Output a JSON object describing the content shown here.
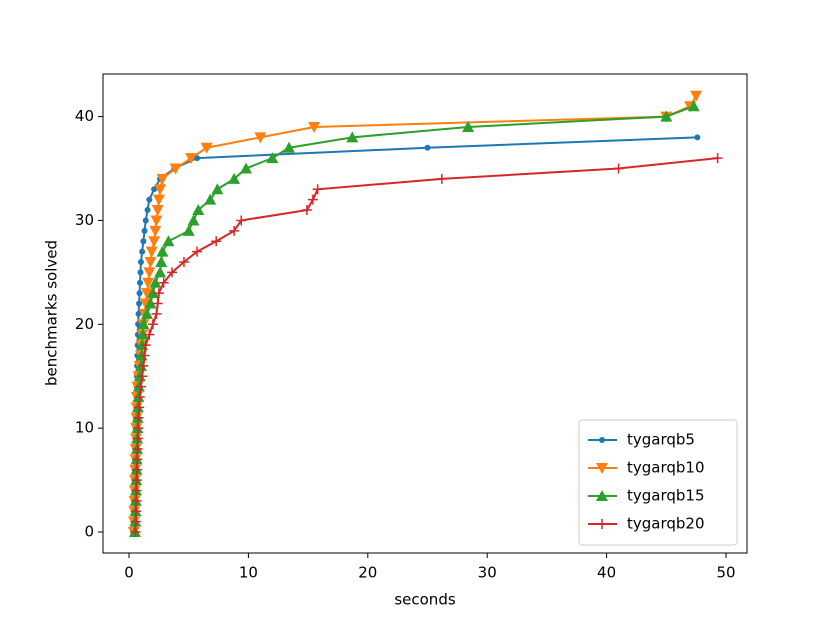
{
  "chart_data": {
    "type": "line",
    "xlabel": "seconds",
    "ylabel": "benchmarks solved",
    "xlim": [
      -2.18,
      51.76
    ],
    "ylim": [
      -2.02,
      44.1
    ],
    "xticks": [
      0,
      10,
      20,
      30,
      40,
      50
    ],
    "yticks": [
      0,
      10,
      20,
      30,
      40
    ],
    "legend": "lower right",
    "series": [
      {
        "name": "tygarqb5",
        "color": "#1f77b4",
        "marker": "circle",
        "x": [
          0.35,
          0.38,
          0.4,
          0.42,
          0.44,
          0.46,
          0.48,
          0.5,
          0.52,
          0.54,
          0.56,
          0.58,
          0.6,
          0.62,
          0.64,
          0.66,
          0.68,
          0.7,
          0.72,
          0.74,
          0.76,
          0.8,
          0.84,
          0.88,
          0.92,
          0.96,
          1.0,
          1.1,
          1.2,
          1.3,
          1.4,
          1.55,
          1.7,
          2.1,
          2.6,
          3.8,
          5.7,
          25,
          47.6
        ],
        "values": [
          0,
          1,
          2,
          3,
          4,
          5,
          6,
          7,
          8,
          9,
          10,
          11,
          12,
          13,
          14,
          15,
          16,
          17,
          18,
          19,
          20,
          21,
          22,
          23,
          24,
          25,
          26,
          27,
          28,
          29,
          30,
          31,
          32,
          33,
          34,
          35,
          36,
          37,
          38
        ]
      },
      {
        "name": "tygarqb10",
        "color": "#ff7f0e",
        "marker": "triangle-down",
        "x": [
          0.4,
          0.42,
          0.44,
          0.46,
          0.48,
          0.5,
          0.52,
          0.54,
          0.56,
          0.58,
          0.6,
          0.62,
          0.64,
          0.66,
          0.7,
          0.8,
          0.9,
          1.0,
          1.05,
          1.1,
          1.2,
          1.3,
          1.4,
          1.5,
          1.6,
          1.7,
          1.8,
          1.9,
          2.1,
          2.2,
          2.3,
          2.4,
          2.5,
          2.6,
          2.8,
          3.9,
          5.2,
          6.5,
          11,
          15.5,
          45,
          47,
          47.5
        ],
        "values": [
          0,
          1,
          2,
          3,
          4,
          5,
          6,
          7,
          8,
          9,
          10,
          11,
          12,
          13,
          14,
          15,
          16,
          17,
          18,
          19,
          20,
          21,
          22,
          23,
          24,
          25,
          26,
          27,
          28,
          29,
          30,
          31,
          32,
          33,
          34,
          35,
          36,
          37,
          38,
          39,
          40,
          41,
          42
        ]
      },
      {
        "name": "tygarqb15",
        "color": "#2ca02c",
        "marker": "triangle-up",
        "x": [
          0.5,
          0.52,
          0.54,
          0.56,
          0.58,
          0.6,
          0.62,
          0.64,
          0.66,
          0.68,
          0.7,
          0.72,
          0.74,
          0.78,
          0.82,
          0.9,
          1.0,
          1.05,
          1.1,
          1.15,
          1.2,
          1.5,
          1.8,
          2.0,
          2.2,
          2.6,
          2.7,
          2.8,
          3.3,
          5.0,
          5.4,
          5.8,
          6.8,
          7.4,
          8.8,
          9.8,
          12,
          13.4,
          18.7,
          28.4,
          45,
          47.3
        ],
        "values": [
          0,
          1,
          2,
          3,
          4,
          5,
          6,
          7,
          8,
          9,
          10,
          11,
          12,
          13,
          14,
          15,
          16,
          17,
          18,
          19,
          20,
          21,
          22,
          23,
          24,
          25,
          26,
          27,
          28,
          29,
          30,
          31,
          32,
          33,
          34,
          35,
          36,
          37,
          38,
          39,
          40,
          41
        ]
      },
      {
        "name": "tygarqb20",
        "color": "#d62728",
        "marker": "plus",
        "x": [
          0.55,
          0.57,
          0.59,
          0.61,
          0.63,
          0.65,
          0.67,
          0.7,
          0.72,
          0.75,
          0.78,
          0.8,
          0.85,
          0.9,
          1.0,
          1.1,
          1.2,
          1.3,
          1.4,
          1.7,
          2.0,
          2.3,
          2.4,
          2.5,
          2.9,
          3.6,
          4.6,
          5.7,
          7.3,
          8.8,
          9.4,
          14.9,
          15.4,
          15.8,
          26.2,
          41,
          49.3
        ],
        "values": [
          0,
          1,
          2,
          3,
          4,
          5,
          6,
          7,
          8,
          9,
          10,
          11,
          12,
          13,
          14,
          15,
          16,
          17,
          18,
          19,
          20,
          21,
          22,
          23,
          24,
          25,
          26,
          27,
          28,
          29,
          30,
          31,
          32,
          33,
          34,
          35,
          36
        ]
      }
    ]
  }
}
